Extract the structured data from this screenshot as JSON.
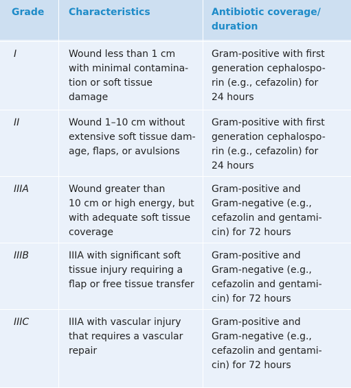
{
  "headers": {
    "grade": "Grade",
    "characteristics": "Characteristics",
    "antibiotic_1": "Antibiotic coverage/",
    "antibiotic_2": "duration"
  },
  "rows": [
    {
      "grade": "I",
      "characteristics": [
        "Wound less than 1 cm",
        "with minimal contamina-",
        "tion or soft tissue",
        "damage"
      ],
      "antibiotic": [
        "Gram-positive with first",
        "generation cephalospo-",
        "rin (e.g., cefazolin) for",
        "24 hours"
      ]
    },
    {
      "grade": "II",
      "characteristics": [
        "Wound 1–10 cm without",
        "extensive soft tissue dam-",
        "age, flaps, or avulsions"
      ],
      "antibiotic": [
        "Gram-positive with first",
        "generation cephalospo-",
        "rin (e.g., cefazolin) for",
        "24 hours"
      ]
    },
    {
      "grade": "IIIA",
      "characteristics": [
        "Wound greater than",
        "10 cm or high energy, but",
        "with adequate soft tissue",
        "coverage"
      ],
      "antibiotic": [
        "Gram-positive and",
        "Gram-negative (e.g.,",
        "cefazolin and gentami-",
        "cin) for 72 hours"
      ]
    },
    {
      "grade": "IIIB",
      "characteristics": [
        "IIIA with significant soft",
        "tissue injury requiring a",
        "flap or free tissue transfer"
      ],
      "antibiotic": [
        "Gram-positive and",
        "Gram-negative (e.g.,",
        "cefazolin and gentami-",
        "cin) for 72 hours"
      ]
    },
    {
      "grade": "IIIC",
      "characteristics": [
        "IIIA with vascular injury",
        "that requires a vascular",
        "repair"
      ],
      "antibiotic": [
        "Gram-positive and",
        "Gram-negative (e.g.,",
        "cefazolin and gentami-",
        "cin) for 72 hours"
      ]
    }
  ]
}
